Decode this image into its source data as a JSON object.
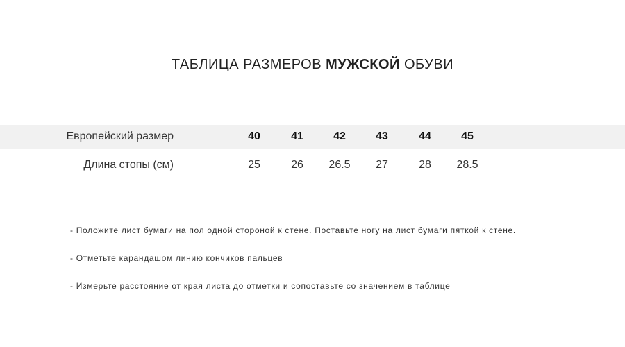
{
  "title": {
    "normal_start": "ТАБЛИЦА РАЗМЕРОВ ",
    "bold": "МУЖСКОЙ",
    "normal_end": " ОБУВИ"
  },
  "table": {
    "rows": [
      {
        "label": "Европейский размер",
        "values": [
          "40",
          "41",
          "42",
          "43",
          "44",
          "45"
        ]
      },
      {
        "label": "Длина стопы (см)",
        "values": [
          "25",
          "26",
          "26.5",
          "27",
          "28",
          "28.5"
        ]
      }
    ]
  },
  "notes": [
    "- Положите лист бумаги на пол одной стороной к стене. Поставьте ногу на лист бумаги пяткой к стене.",
    "- Отметьте карандашом линию кончиков пальцев",
    "- Измерьте расстояние от края листа до отметки и сопоставьте со значением в таблице"
  ]
}
